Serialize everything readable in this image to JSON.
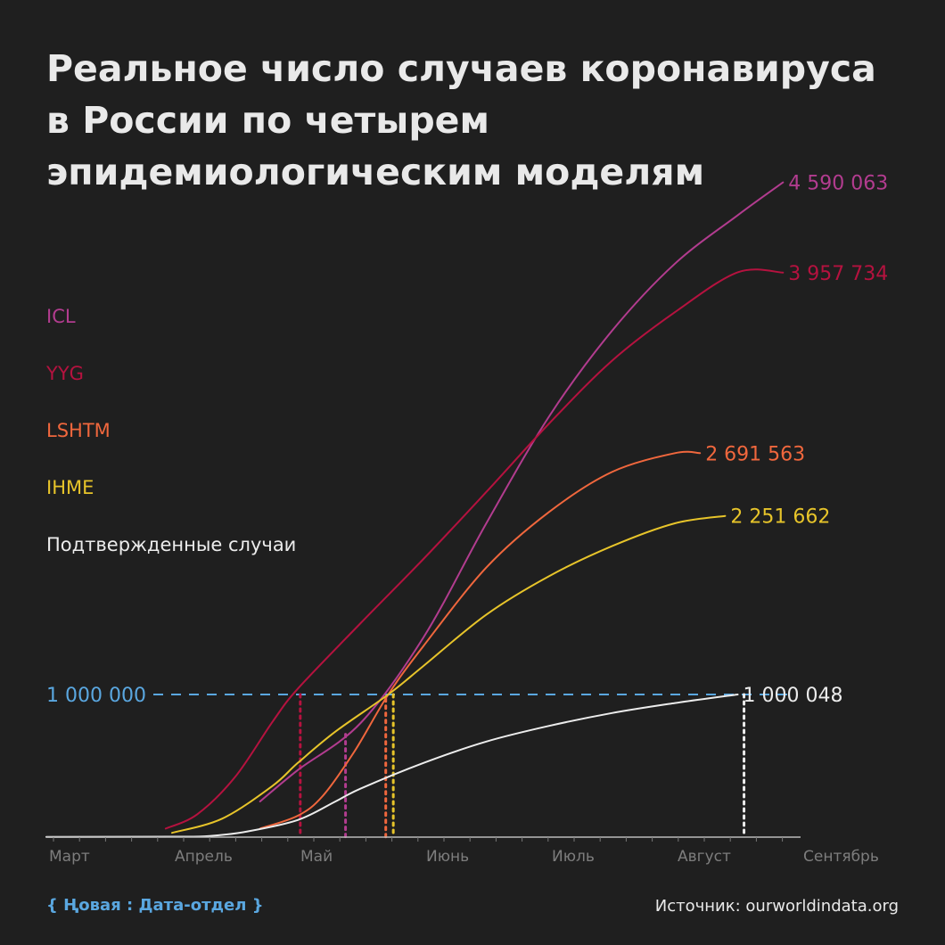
{
  "title": "Реальное число случаев коронавируса в России по четырем эпидемиологическим моделям",
  "footer": {
    "brand": "{ Ңовая : Дата-отдел }",
    "source": "Источник: ourworldindata.org"
  },
  "chart_data": {
    "type": "line",
    "x_ticks": [
      "Март",
      "Апрель",
      "Май",
      "Июнь",
      "Июль",
      "Август",
      "Сентябрь"
    ],
    "ylim": [
      0,
      4800000
    ],
    "grid": false,
    "legend_placement": "left",
    "reference_line": {
      "value": 1000000,
      "label": "1 000 000",
      "color": "#5aa7e0"
    },
    "series": [
      {
        "name": "ICL",
        "color": "#b23c8f",
        "end_label": "4 590 063",
        "points": [
          [
            1.7,
            250000
          ],
          [
            2.0,
            470000
          ],
          [
            2.5,
            800000
          ],
          [
            3.0,
            1400000
          ],
          [
            3.5,
            2200000
          ],
          [
            4.0,
            2950000
          ],
          [
            4.5,
            3550000
          ],
          [
            5.0,
            4020000
          ],
          [
            5.5,
            4360000
          ],
          [
            5.86,
            4590063
          ]
        ]
      },
      {
        "name": "YYG",
        "color": "#b5123f",
        "end_label": "3 957 734",
        "points": [
          [
            0.95,
            60000
          ],
          [
            1.2,
            160000
          ],
          [
            1.5,
            420000
          ],
          [
            1.8,
            810000
          ],
          [
            2.0,
            1040000
          ],
          [
            2.5,
            1500000
          ],
          [
            3.0,
            1950000
          ],
          [
            3.5,
            2420000
          ],
          [
            4.0,
            2900000
          ],
          [
            4.5,
            3340000
          ],
          [
            5.0,
            3680000
          ],
          [
            5.5,
            3960000
          ],
          [
            5.86,
            3957734
          ]
        ]
      },
      {
        "name": "LSHTM",
        "color": "#f0673d",
        "end_label": "2 691 563",
        "points": [
          [
            1.7,
            60000
          ],
          [
            2.0,
            150000
          ],
          [
            2.2,
            290000
          ],
          [
            2.45,
            600000
          ],
          [
            2.72,
            1000000
          ],
          [
            3.0,
            1340000
          ],
          [
            3.5,
            1890000
          ],
          [
            4.0,
            2280000
          ],
          [
            4.5,
            2560000
          ],
          [
            5.0,
            2691563
          ],
          [
            5.2,
            2691563
          ]
        ]
      },
      {
        "name": "IHME",
        "color": "#e7c42a",
        "end_label": "2 251 662",
        "points": [
          [
            1.0,
            30000
          ],
          [
            1.4,
            130000
          ],
          [
            1.8,
            360000
          ],
          [
            2.0,
            520000
          ],
          [
            2.3,
            740000
          ],
          [
            2.72,
            1000000
          ],
          [
            3.0,
            1200000
          ],
          [
            3.5,
            1560000
          ],
          [
            4.0,
            1830000
          ],
          [
            4.5,
            2040000
          ],
          [
            5.0,
            2200000
          ],
          [
            5.4,
            2251662
          ]
        ]
      },
      {
        "name": "Подтвержденные случаи",
        "color": "#ececec",
        "end_label": "1 000 048",
        "points": [
          [
            0.0,
            2000
          ],
          [
            1.0,
            3000
          ],
          [
            1.3,
            8000
          ],
          [
            1.6,
            40000
          ],
          [
            2.0,
            120000
          ],
          [
            2.3,
            250000
          ],
          [
            2.5,
            340000
          ],
          [
            3.0,
            520000
          ],
          [
            3.5,
            670000
          ],
          [
            4.0,
            780000
          ],
          [
            4.5,
            870000
          ],
          [
            5.0,
            940000
          ],
          [
            5.5,
            1000048
          ]
        ]
      }
    ],
    "event_markers": [
      {
        "series": "YYG",
        "x": 2.02
      },
      {
        "series": "ICL",
        "x": 2.38
      },
      {
        "series": "LSHTM",
        "x": 2.7
      },
      {
        "series": "IHME",
        "x": 2.76
      },
      {
        "series": "Подтвержденные случаи",
        "x": 5.55
      }
    ]
  }
}
